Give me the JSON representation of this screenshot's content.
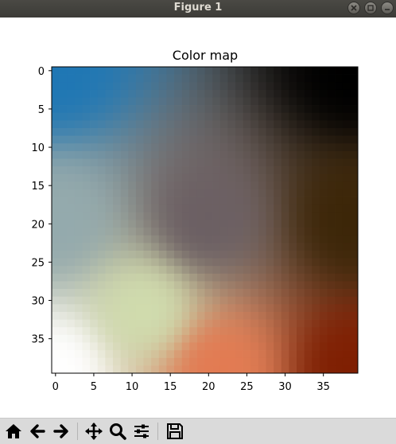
{
  "window": {
    "title": "Figure 1"
  },
  "toolbar": {
    "buttons": [
      {
        "icon": "home-icon"
      },
      {
        "icon": "back-arrow-icon"
      },
      {
        "icon": "forward-arrow-icon"
      },
      {
        "icon": "pan-icon"
      },
      {
        "icon": "zoom-icon"
      },
      {
        "icon": "subplots-config-icon"
      },
      {
        "icon": "save-icon"
      }
    ]
  },
  "chart_data": {
    "type": "heatmap",
    "title": "Color map",
    "xlabel": "",
    "ylabel": "",
    "grid_size": [
      40,
      40
    ],
    "xlim": [
      -0.5,
      39.5
    ],
    "ylim": [
      39.5,
      -0.5
    ],
    "x_ticks": [
      0,
      5,
      10,
      15,
      20,
      25,
      30,
      35
    ],
    "y_ticks": [
      0,
      5,
      10,
      15,
      20,
      25,
      30,
      35
    ],
    "x_tick_labels": [
      "0",
      "5",
      "10",
      "15",
      "20",
      "25",
      "30",
      "35"
    ],
    "y_tick_labels": [
      "0",
      "5",
      "10",
      "15",
      "20",
      "25",
      "30",
      "35"
    ],
    "corner_colors": {
      "top_left": "#1f77b4",
      "top_right": "#000000",
      "bottom_left": "#ffffff",
      "bottom_right": "#7f1f02"
    },
    "anchor_colors": {
      "center": "#6b5f63",
      "right_middle": "#3c2608",
      "bottom_middle": "#e37b52",
      "lower_left_center": "#d0dcae",
      "left_middle": "#94aaad"
    }
  }
}
